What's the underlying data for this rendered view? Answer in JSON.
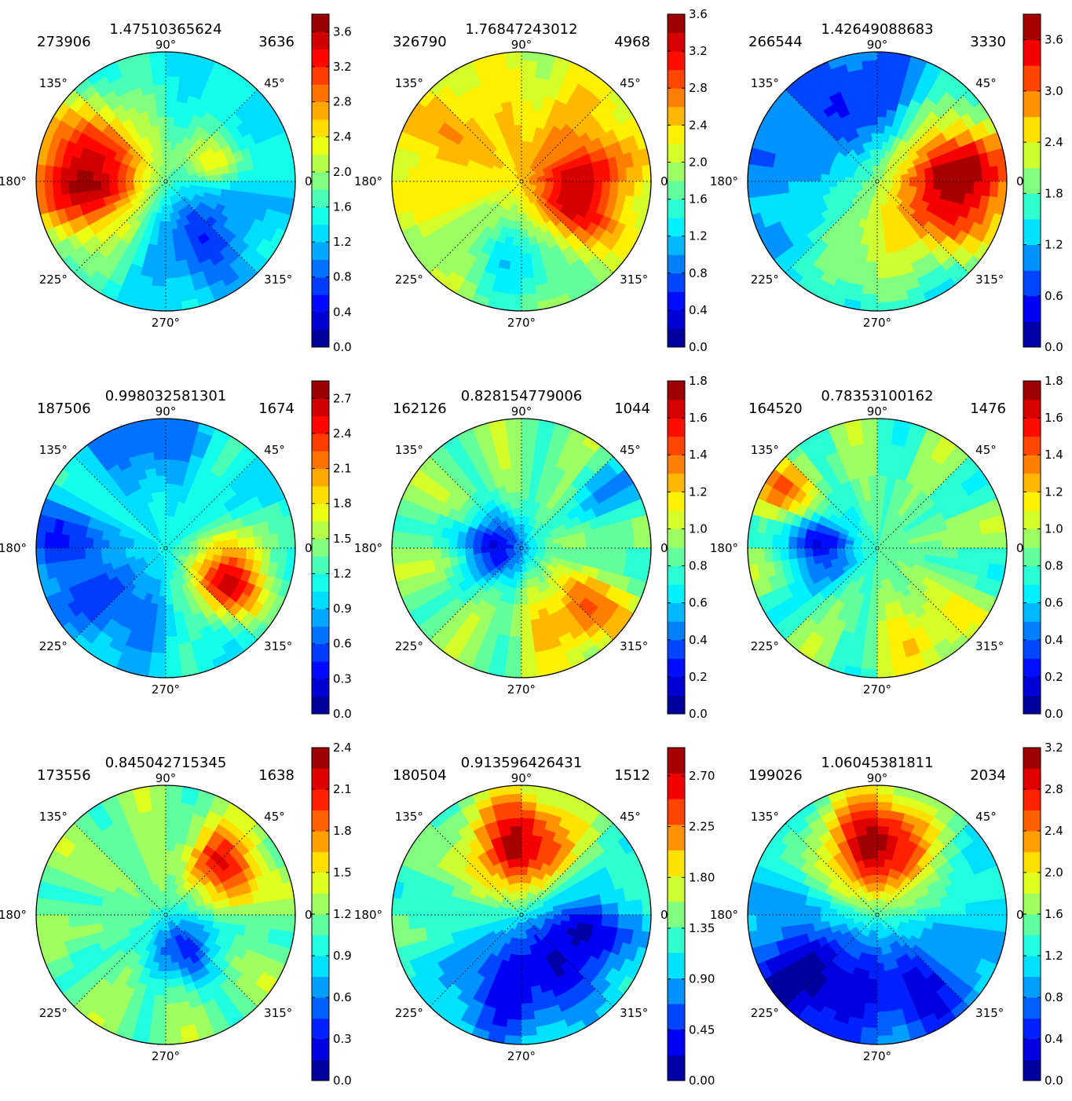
{
  "angle_labels": [
    "0°",
    "45°",
    "90°",
    "135°",
    "180°",
    "225°",
    "270°",
    "315°"
  ],
  "chart_data": [
    {
      "type": "heatmap",
      "projection": "polar",
      "title": "1.47510365624",
      "left_count": "273906",
      "right_count": "3636",
      "colorbar": {
        "ticks": [
          "0.0",
          "0.4",
          "0.8",
          "1.2",
          "1.6",
          "2.0",
          "2.4",
          "2.8",
          "3.2",
          "3.6"
        ],
        "max": 3.8,
        "levels": 19
      },
      "blobs": [
        {
          "angle": 175,
          "r": 0.62,
          "value": 3.7,
          "spread": 0.38
        },
        {
          "angle": 25,
          "r": 0.4,
          "value": 2.4,
          "spread": 0.15
        },
        {
          "angle": 300,
          "r": 0.45,
          "value": 0.6,
          "spread": 0.3
        }
      ],
      "base": 1.4
    },
    {
      "type": "heatmap",
      "projection": "polar",
      "title": "1.76847243012",
      "left_count": "326790",
      "right_count": "4968",
      "colorbar": {
        "ticks": [
          "0.0",
          "0.4",
          "0.8",
          "1.2",
          "1.6",
          "2.0",
          "2.4",
          "2.8",
          "3.2",
          "3.6"
        ],
        "max": 3.6,
        "levels": 18
      },
      "blobs": [
        {
          "angle": 340,
          "r": 0.45,
          "value": 3.3,
          "spread": 0.25
        },
        {
          "angle": 150,
          "r": 0.6,
          "value": 2.5,
          "spread": 0.4
        },
        {
          "angle": 30,
          "r": 0.6,
          "value": 2.5,
          "spread": 0.35
        },
        {
          "angle": 270,
          "r": 0.6,
          "value": 1.2,
          "spread": 0.3
        }
      ],
      "base": 2.0
    },
    {
      "type": "heatmap",
      "projection": "polar",
      "title": "1.42649088683",
      "left_count": "266544",
      "right_count": "3330",
      "colorbar": {
        "ticks": [
          "0.0",
          "0.6",
          "1.2",
          "1.8",
          "2.4",
          "3.0",
          "3.6"
        ],
        "max": 3.9,
        "levels": 13
      },
      "blobs": [
        {
          "angle": 0,
          "r": 0.65,
          "value": 3.8,
          "spread": 0.4
        },
        {
          "angle": 100,
          "r": 0.6,
          "value": 0.4,
          "spread": 0.25
        },
        {
          "angle": 260,
          "r": 0.6,
          "value": 2.0,
          "spread": 0.4
        }
      ],
      "base": 1.0
    },
    {
      "type": "heatmap",
      "projection": "polar",
      "title": "0.998032581301",
      "left_count": "187506",
      "right_count": "1674",
      "colorbar": {
        "ticks": [
          "0.0",
          "0.3",
          "0.6",
          "0.9",
          "1.2",
          "1.5",
          "1.8",
          "2.1",
          "2.4",
          "2.7"
        ],
        "max": 2.85,
        "levels": 19
      },
      "blobs": [
        {
          "angle": 335,
          "r": 0.55,
          "value": 2.6,
          "spread": 0.22
        },
        {
          "angle": 180,
          "r": 0.85,
          "value": 0.5,
          "spread": 0.25
        },
        {
          "angle": 100,
          "r": 0.9,
          "value": 0.5,
          "spread": 0.25
        },
        {
          "angle": 230,
          "r": 0.6,
          "value": 0.6,
          "spread": 0.3
        }
      ],
      "base": 1.1
    },
    {
      "type": "heatmap",
      "projection": "polar",
      "title": "0.828154779006",
      "left_count": "162126",
      "right_count": "1044",
      "colorbar": {
        "ticks": [
          "0.0",
          "0.2",
          "0.4",
          "0.6",
          "0.8",
          "1.0",
          "1.2",
          "1.4",
          "1.6",
          "1.8"
        ],
        "max": 1.8,
        "levels": 18
      },
      "blobs": [
        {
          "angle": 180,
          "r": 0.2,
          "value": 0.2,
          "spread": 0.2
        },
        {
          "angle": 310,
          "r": 0.7,
          "value": 1.4,
          "spread": 0.25
        },
        {
          "angle": 30,
          "r": 0.8,
          "value": 0.6,
          "spread": 0.25
        }
      ],
      "base": 0.9
    },
    {
      "type": "heatmap",
      "projection": "polar",
      "title": "0.78353100162",
      "left_count": "164520",
      "right_count": "1476",
      "colorbar": {
        "ticks": [
          "0.0",
          "0.2",
          "0.4",
          "0.6",
          "0.8",
          "1.0",
          "1.2",
          "1.4",
          "1.6",
          "1.8"
        ],
        "max": 1.8,
        "levels": 18
      },
      "blobs": [
        {
          "angle": 180,
          "r": 0.45,
          "value": 0.2,
          "spread": 0.2
        },
        {
          "angle": 150,
          "r": 0.85,
          "value": 1.3,
          "spread": 0.2
        },
        {
          "angle": 300,
          "r": 0.8,
          "value": 1.2,
          "spread": 0.25
        }
      ],
      "base": 0.85
    },
    {
      "type": "heatmap",
      "projection": "polar",
      "title": "0.845042715345",
      "left_count": "173556",
      "right_count": "1638",
      "colorbar": {
        "ticks": [
          "0.0",
          "0.3",
          "0.6",
          "0.9",
          "1.2",
          "1.5",
          "1.8",
          "2.1",
          "2.4"
        ],
        "max": 2.4,
        "levels": 16
      },
      "blobs": [
        {
          "angle": 40,
          "r": 0.6,
          "value": 2.2,
          "spread": 0.18
        },
        {
          "angle": 300,
          "r": 0.3,
          "value": 0.4,
          "spread": 0.2
        },
        {
          "angle": 200,
          "r": 0.6,
          "value": 1.1,
          "spread": 0.3
        }
      ],
      "base": 1.2
    },
    {
      "type": "heatmap",
      "projection": "polar",
      "title": "0.913596426431",
      "left_count": "180504",
      "right_count": "1512",
      "colorbar": {
        "ticks": [
          "0.00",
          "0.45",
          "0.90",
          "1.35",
          "1.80",
          "2.25",
          "2.70"
        ],
        "max": 2.95,
        "levels": 13
      },
      "blobs": [
        {
          "angle": 90,
          "r": 0.55,
          "value": 2.8,
          "spread": 0.3
        },
        {
          "angle": 340,
          "r": 0.5,
          "value": 0.3,
          "spread": 0.3
        },
        {
          "angle": 260,
          "r": 0.6,
          "value": 0.4,
          "spread": 0.35
        }
      ],
      "base": 1.3
    },
    {
      "type": "heatmap",
      "projection": "polar",
      "title": "1.06045381811",
      "left_count": "199026",
      "right_count": "2034",
      "colorbar": {
        "ticks": [
          "0.0",
          "0.4",
          "0.8",
          "1.2",
          "1.6",
          "2.0",
          "2.4",
          "2.8",
          "3.2"
        ],
        "max": 3.2,
        "levels": 16
      },
      "blobs": [
        {
          "angle": 90,
          "r": 0.55,
          "value": 3.1,
          "spread": 0.33
        },
        {
          "angle": 225,
          "r": 0.75,
          "value": 0.1,
          "spread": 0.35
        },
        {
          "angle": 300,
          "r": 0.7,
          "value": 0.4,
          "spread": 0.3
        }
      ],
      "base": 1.1
    }
  ]
}
